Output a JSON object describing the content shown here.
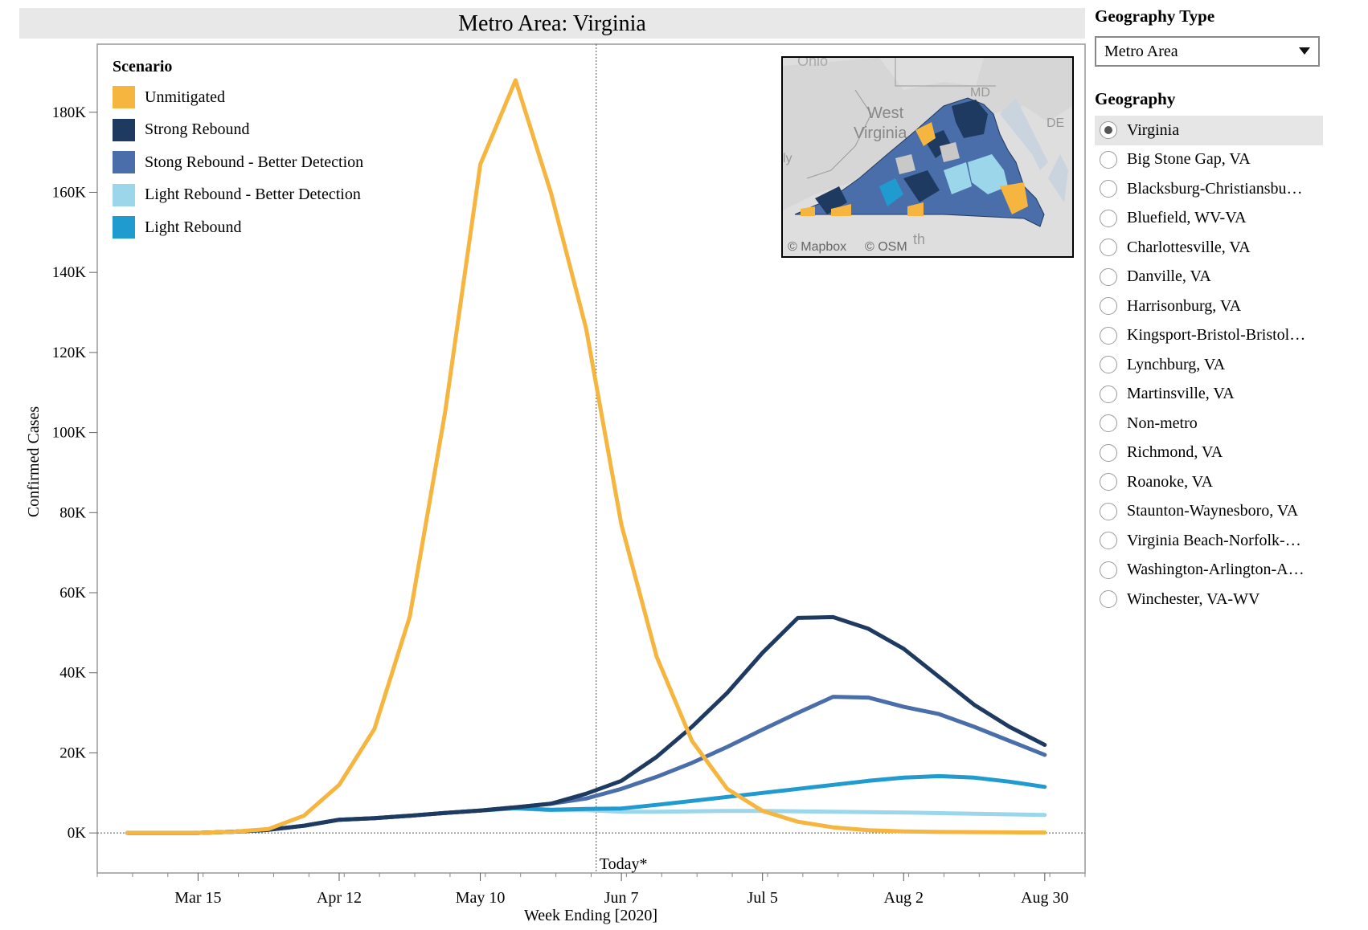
{
  "chart_data": {
    "type": "line",
    "title": "Metro Area: Virginia",
    "xlabel": "Week Ending [2020]",
    "ylabel": "Confirmed Cases",
    "x": [
      "2020-03-01",
      "2020-03-08",
      "2020-03-15",
      "2020-03-22",
      "2020-03-29",
      "2020-04-05",
      "2020-04-12",
      "2020-04-19",
      "2020-04-26",
      "2020-05-03",
      "2020-05-10",
      "2020-05-17",
      "2020-05-24",
      "2020-05-31",
      "2020-06-07",
      "2020-06-14",
      "2020-06-21",
      "2020-06-28",
      "2020-07-05",
      "2020-07-12",
      "2020-07-19",
      "2020-07-26",
      "2020-08-02",
      "2020-08-09",
      "2020-08-16",
      "2020-08-23",
      "2020-08-30"
    ],
    "xlim": [
      "2020-02-24",
      "2020-09-07"
    ],
    "x_ticks": [
      {
        "date": "2020-03-15",
        "label": "Mar 15"
      },
      {
        "date": "2020-04-12",
        "label": "Apr 12"
      },
      {
        "date": "2020-05-10",
        "label": "May 10"
      },
      {
        "date": "2020-06-07",
        "label": "Jun 7"
      },
      {
        "date": "2020-07-05",
        "label": "Jul 5"
      },
      {
        "date": "2020-08-02",
        "label": "Aug 2"
      },
      {
        "date": "2020-08-30",
        "label": "Aug 30"
      }
    ],
    "ylim": [
      -10000,
      197000
    ],
    "y_ticks": [
      {
        "value": 0,
        "label": "0K"
      },
      {
        "value": 20000,
        "label": "20K"
      },
      {
        "value": 40000,
        "label": "40K"
      },
      {
        "value": 60000,
        "label": "60K"
      },
      {
        "value": 80000,
        "label": "80K"
      },
      {
        "value": 100000,
        "label": "100K"
      },
      {
        "value": 120000,
        "label": "120K"
      },
      {
        "value": 140000,
        "label": "140K"
      },
      {
        "value": 160000,
        "label": "160K"
      },
      {
        "value": 180000,
        "label": "180K"
      }
    ],
    "reference_line": {
      "date": "2020-06-02",
      "label": "Today*"
    },
    "legend_title": "Scenario",
    "legend_position": "top-left",
    "grid": false,
    "series": [
      {
        "name": "Unmitigated",
        "color": "#F5B53F",
        "values": [
          0,
          0,
          0,
          300,
          1000,
          4300,
          12000,
          26000,
          54000,
          105000,
          167000,
          188000,
          160000,
          126000,
          77000,
          44000,
          23000,
          11000,
          5500,
          2800,
          1400,
          700,
          400,
          250,
          200,
          150,
          100
        ]
      },
      {
        "name": "Strong Rebound",
        "color": "#1F3A60",
        "values": [
          0,
          0,
          0,
          300,
          800,
          1800,
          3300,
          3700,
          4300,
          5000,
          5600,
          6400,
          7300,
          9800,
          13000,
          19000,
          26500,
          35000,
          45000,
          53700,
          53900,
          51000,
          46000,
          39000,
          32000,
          26500,
          22000
        ]
      },
      {
        "name": "Stong Rebound - Better Detection",
        "color": "#4A6EA9",
        "values": [
          0,
          0,
          0,
          300,
          800,
          1800,
          3300,
          3700,
          4300,
          5000,
          5600,
          6400,
          7300,
          8600,
          11000,
          14000,
          17500,
          21500,
          25800,
          30000,
          34000,
          33800,
          31500,
          29700,
          26500,
          23000,
          19500
        ]
      },
      {
        "name": "Light Rebound - Better Detection",
        "color": "#9CD6EA",
        "values": [
          0,
          0,
          0,
          300,
          800,
          1800,
          3300,
          3700,
          4300,
          5000,
          5600,
          6100,
          5700,
          5700,
          5300,
          5300,
          5400,
          5500,
          5500,
          5400,
          5300,
          5200,
          5100,
          4950,
          4800,
          4650,
          4500
        ]
      },
      {
        "name": "Light Rebound",
        "color": "#1F9BCF",
        "values": [
          0,
          0,
          0,
          300,
          800,
          1800,
          3300,
          3700,
          4300,
          5000,
          5600,
          6200,
          5800,
          6000,
          6100,
          7000,
          8000,
          9000,
          10000,
          11000,
          12000,
          13000,
          13800,
          14200,
          13800,
          12800,
          11500
        ]
      }
    ]
  },
  "map": {
    "labels": [
      "Ohio",
      "MD",
      "West",
      "Virginia",
      "DE",
      "ly",
      "th"
    ],
    "attribution": [
      "© Mapbox",
      "© OSM"
    ]
  },
  "sidebar": {
    "geography_type_label": "Geography Type",
    "geography_type_value": "Metro Area",
    "geography_label": "Geography",
    "selected_index": 0,
    "items": [
      "Virginia",
      "Big Stone Gap, VA",
      "Blacksburg-Christiansbu…",
      "Bluefield, WV-VA",
      "Charlottesville, VA",
      "Danville, VA",
      "Harrisonburg, VA",
      "Kingsport-Bristol-Bristol…",
      "Lynchburg, VA",
      "Martinsville, VA",
      "Non-metro",
      "Richmond, VA",
      "Roanoke, VA",
      "Staunton-Waynesboro, VA",
      "Virginia Beach-Norfolk-…",
      "Washington-Arlington-A…",
      "Winchester, VA-WV"
    ]
  }
}
